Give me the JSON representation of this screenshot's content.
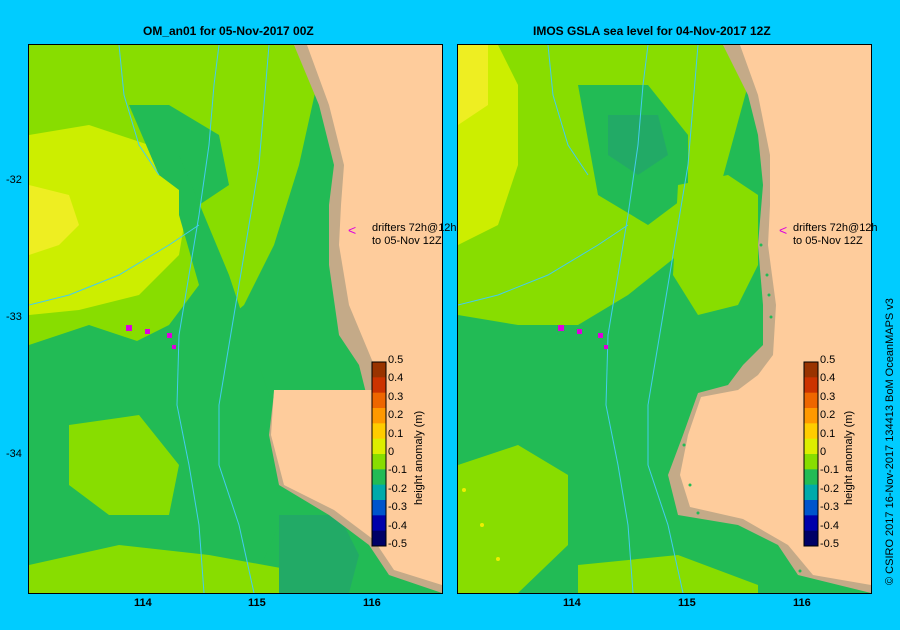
{
  "panels": [
    {
      "title": "OM_an01  for 05-Nov-2017 00Z",
      "note": [
        "drifters 72h@12h",
        "to 05-Nov 12Z"
      ]
    },
    {
      "title": "IMOS  GSLA sea level  for 04-Nov-2017 12Z",
      "note": [
        "drifters 72h@12h",
        "to 05-Nov 12Z"
      ]
    }
  ],
  "axes": {
    "y_ticks": [
      "-32",
      "-33",
      "-34"
    ],
    "x_ticks": [
      "114",
      "115",
      "116"
    ]
  },
  "colorbar": {
    "label": "height anomaly (m)",
    "ticks": [
      "0.5",
      "0.4",
      "0.3",
      "0.2",
      "0.1",
      "0",
      "-0.1",
      "-0.2",
      "-0.3",
      "-0.4",
      "-0.5"
    ],
    "colors": [
      "#993300",
      "#cc3300",
      "#ee6600",
      "#ff9900",
      "#ffcc00",
      "#ddee00",
      "#88dd00",
      "#22bb55",
      "#00aaaa",
      "#0055cc",
      "#0000aa",
      "#000066"
    ]
  },
  "credit": "© CSIRO 2017   16-Nov-2017 134413 BoM OceanMAPS v3",
  "colors": {
    "background": "#00ccff",
    "land": "#fecc9c",
    "shelf": "#c4aa88",
    "drifter": "#dd00dd",
    "isobath": "#44ccee"
  }
}
